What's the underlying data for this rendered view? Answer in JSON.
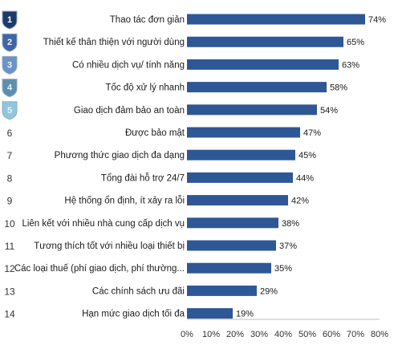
{
  "chart_data": {
    "type": "bar",
    "orientation": "horizontal",
    "categories": [
      "Thao tác đơn giản",
      "Thiết kế thân thiện với người dùng",
      "Có nhiều dịch vụ/ tính năng",
      "Tốc độ xử lý nhanh",
      "Giao dịch đảm bảo an toàn",
      "Được bảo mật",
      "Phương thức giao dịch đa dạng",
      "Tổng đài hỗ trợ 24/7",
      "Hệ thống ổn định, ít xảy ra lỗi",
      "Liên kết với nhiều nhà cung cấp dịch vụ",
      "Tương thích tốt với nhiều loại thiết bị",
      "Các loại thuế (phí giao dịch, phí thường...",
      "Các chính sách ưu đãi",
      "Hạn mức giao dịch tối đa"
    ],
    "ranks": [
      "1",
      "2",
      "3",
      "4",
      "5",
      "6",
      "7",
      "8",
      "9",
      "10",
      "11",
      "12",
      "13",
      "14"
    ],
    "values": [
      74,
      65,
      63,
      58,
      54,
      47,
      45,
      44,
      42,
      38,
      37,
      35,
      29,
      19
    ],
    "value_labels": [
      "74%",
      "65%",
      "63%",
      "58%",
      "54%",
      "47%",
      "45%",
      "44%",
      "42%",
      "38%",
      "37%",
      "35%",
      "29%",
      "19%"
    ],
    "xlim": [
      0,
      80
    ],
    "xticks": [
      0,
      10,
      20,
      30,
      40,
      50,
      60,
      70,
      80
    ],
    "xtick_labels": [
      "0%",
      "10%",
      "20%",
      "30%",
      "40%",
      "50%",
      "60%",
      "70%",
      "80%"
    ],
    "title": "",
    "xlabel": "",
    "ylabel": "",
    "grid": false,
    "legend": "none",
    "colors": {
      "bar": "#2e5796",
      "badge_fills": [
        "#1d3a6b",
        "#3d65a8",
        "#6a93c9",
        "#5a8fb1",
        "#8fc7de"
      ],
      "badge_stroke": "#9aa7b8",
      "axis": "#bfbfbf"
    },
    "badge_count": 5
  }
}
